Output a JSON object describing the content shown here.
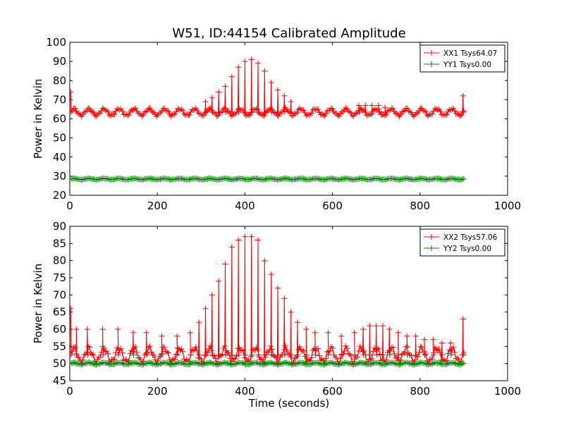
{
  "title": "W51, ID:44154 Calibrated Amplitude",
  "xlabel": "Time (seconds)",
  "chart_data": [
    {
      "type": "line",
      "ylabel": "Power in Kelvin",
      "xlim": [
        0,
        1000
      ],
      "ylim": [
        20,
        100
      ],
      "xticks": [
        0,
        200,
        400,
        600,
        800,
        1000
      ],
      "yticks": [
        20,
        30,
        40,
        50,
        60,
        70,
        80,
        90,
        100
      ],
      "legend_position": "top-right",
      "series": [
        {
          "name": "XX1 Tsys64.07",
          "color": "#ff0000",
          "marker": "plus",
          "base": 63.5,
          "wiggle": 1.7,
          "x_start": 0,
          "x_end": 900,
          "x_step": 3,
          "spikes": [
            {
              "x": 2,
              "y": 74
            },
            {
              "x": 310,
              "y": 69
            },
            {
              "x": 325,
              "y": 71
            },
            {
              "x": 340,
              "y": 74
            },
            {
              "x": 355,
              "y": 77
            },
            {
              "x": 370,
              "y": 82
            },
            {
              "x": 385,
              "y": 87
            },
            {
              "x": 400,
              "y": 90
            },
            {
              "x": 415,
              "y": 91
            },
            {
              "x": 430,
              "y": 89
            },
            {
              "x": 445,
              "y": 85
            },
            {
              "x": 460,
              "y": 79
            },
            {
              "x": 475,
              "y": 75
            },
            {
              "x": 490,
              "y": 72
            },
            {
              "x": 505,
              "y": 69
            },
            {
              "x": 660,
              "y": 67
            },
            {
              "x": 675,
              "y": 67
            },
            {
              "x": 690,
              "y": 67
            },
            {
              "x": 705,
              "y": 67
            },
            {
              "x": 720,
              "y": 66
            },
            {
              "x": 898,
              "y": 72
            }
          ]
        },
        {
          "name": "YY1 Tsys0.00",
          "color": "#008000",
          "marker": "plus",
          "base": 28.5,
          "wiggle": 0.3,
          "x_start": 0,
          "x_end": 900,
          "x_step": 3,
          "spikes": []
        }
      ]
    },
    {
      "type": "line",
      "ylabel": "Power in Kelvin",
      "xlim": [
        0,
        1000
      ],
      "ylim": [
        45,
        90
      ],
      "xticks": [
        0,
        200,
        400,
        600,
        800,
        1000
      ],
      "yticks": [
        45,
        50,
        55,
        60,
        65,
        70,
        75,
        80,
        85,
        90
      ],
      "legend_position": "top-right",
      "series": [
        {
          "name": "XX2 Tsys57.06",
          "color": "#ff0000",
          "marker": "plus",
          "base": 52.5,
          "wiggle": 2.0,
          "x_start": 0,
          "x_end": 900,
          "x_step": 3,
          "spikes": [
            {
              "x": 2,
              "y": 66
            },
            {
              "x": 15,
              "y": 60
            },
            {
              "x": 40,
              "y": 60
            },
            {
              "x": 75,
              "y": 60
            },
            {
              "x": 110,
              "y": 60
            },
            {
              "x": 145,
              "y": 59
            },
            {
              "x": 175,
              "y": 59
            },
            {
              "x": 210,
              "y": 58
            },
            {
              "x": 245,
              "y": 58
            },
            {
              "x": 275,
              "y": 59
            },
            {
              "x": 295,
              "y": 62
            },
            {
              "x": 310,
              "y": 66
            },
            {
              "x": 325,
              "y": 70
            },
            {
              "x": 340,
              "y": 74
            },
            {
              "x": 355,
              "y": 79
            },
            {
              "x": 370,
              "y": 84
            },
            {
              "x": 385,
              "y": 86
            },
            {
              "x": 400,
              "y": 87
            },
            {
              "x": 415,
              "y": 87
            },
            {
              "x": 430,
              "y": 86
            },
            {
              "x": 445,
              "y": 80
            },
            {
              "x": 460,
              "y": 76
            },
            {
              "x": 475,
              "y": 72
            },
            {
              "x": 490,
              "y": 69
            },
            {
              "x": 505,
              "y": 65
            },
            {
              "x": 520,
              "y": 62
            },
            {
              "x": 540,
              "y": 60
            },
            {
              "x": 560,
              "y": 59
            },
            {
              "x": 590,
              "y": 59
            },
            {
              "x": 620,
              "y": 58
            },
            {
              "x": 650,
              "y": 59
            },
            {
              "x": 670,
              "y": 60
            },
            {
              "x": 685,
              "y": 61
            },
            {
              "x": 700,
              "y": 61
            },
            {
              "x": 715,
              "y": 61
            },
            {
              "x": 730,
              "y": 60
            },
            {
              "x": 750,
              "y": 59
            },
            {
              "x": 770,
              "y": 58
            },
            {
              "x": 790,
              "y": 58
            },
            {
              "x": 810,
              "y": 57
            },
            {
              "x": 830,
              "y": 57
            },
            {
              "x": 850,
              "y": 56
            },
            {
              "x": 870,
              "y": 56
            },
            {
              "x": 898,
              "y": 63
            }
          ]
        },
        {
          "name": "YY2 Tsys0.00",
          "color": "#008000",
          "marker": "plus",
          "base": 50.0,
          "wiggle": 0.25,
          "x_start": 0,
          "x_end": 900,
          "x_step": 3,
          "spikes": []
        }
      ]
    }
  ]
}
